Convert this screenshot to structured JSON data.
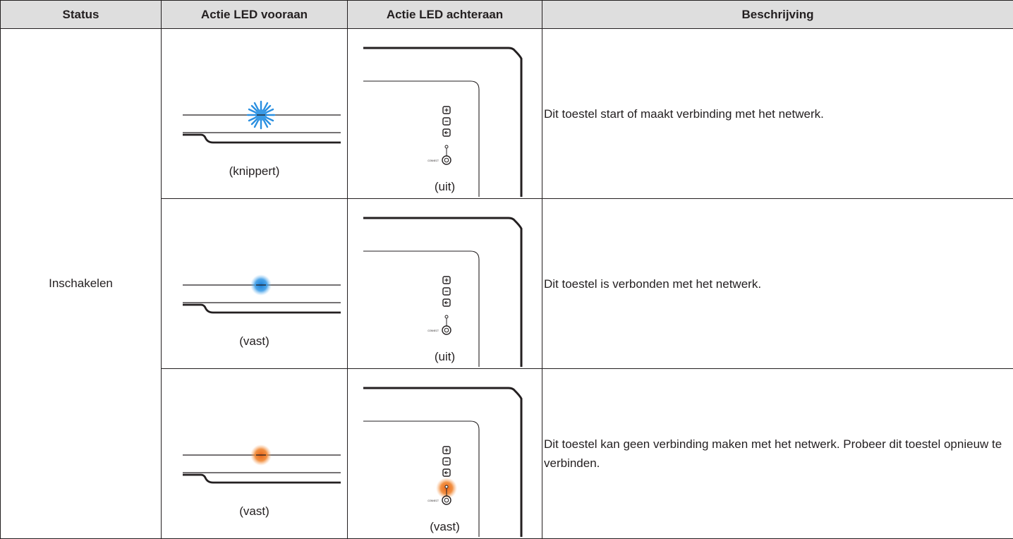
{
  "headers": {
    "status": "Status",
    "front": "Actie LED vooraan",
    "rear": "Actie LED achteraan",
    "description": "Beschrijving"
  },
  "status_label": "Inschakelen",
  "rows": [
    {
      "front_state": "(knippert)",
      "rear_state": "(uit)",
      "description": "Dit toestel start of maakt verbinding met het netwerk.",
      "front_led": "blinking-blue",
      "rear_led": "off"
    },
    {
      "front_state": "(vast)",
      "rear_state": "(uit)",
      "description": "Dit toestel is verbonden met het netwerk.",
      "front_led": "solid-blue",
      "rear_led": "off"
    },
    {
      "front_state": "(vast)",
      "rear_state": "(vast)",
      "description": "Dit toestel kan geen verbinding maken met het netwerk. Probeer dit toestel opnieuw te verbinden.",
      "front_led": "solid-orange",
      "rear_led": "solid-orange"
    }
  ],
  "rear_panel_label": "CONNECT",
  "colors": {
    "blue": "#2a8fe0",
    "orange": "#ee7a22",
    "line": "#231f20",
    "header_bg": "#dedede"
  }
}
